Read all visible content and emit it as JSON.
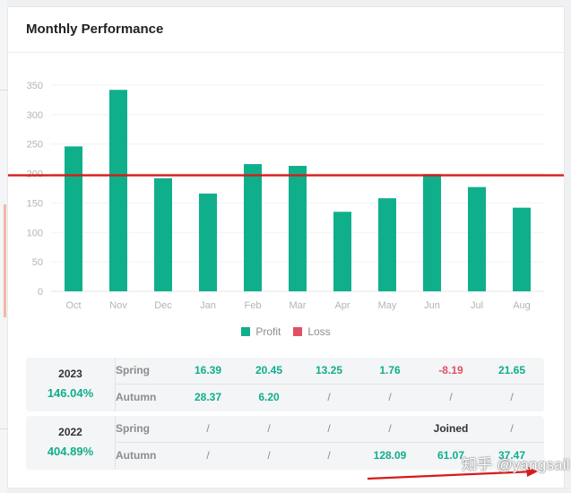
{
  "card": {
    "title": "Monthly Performance"
  },
  "chart_data": {
    "type": "bar",
    "categories": [
      "Oct",
      "Nov",
      "Dec",
      "Jan",
      "Feb",
      "Mar",
      "Apr",
      "May",
      "Jun",
      "Jul",
      "Aug"
    ],
    "series": [
      {
        "name": "Profit",
        "color": "#0faf8c",
        "values": [
          246,
          342,
          192,
          166,
          216,
          213,
          135,
          158,
          199,
          177,
          142
        ]
      }
    ],
    "yticks": [
      0,
      50,
      100,
      150,
      200,
      250,
      300,
      350
    ],
    "ylim": [
      0,
      350
    ],
    "grid": true,
    "annotation_line_y": 197,
    "annotation_color": "#d91a1a"
  },
  "legend": {
    "items": [
      {
        "label": "Profit",
        "color": "#0faf8c"
      },
      {
        "label": "Loss",
        "color": "#e05261"
      }
    ]
  },
  "years": [
    {
      "year": "2023",
      "percent": "146.04%",
      "rows": [
        {
          "season": "Spring",
          "cells": [
            {
              "text": "16.39",
              "kind": "pos"
            },
            {
              "text": "20.45",
              "kind": "pos"
            },
            {
              "text": "13.25",
              "kind": "pos"
            },
            {
              "text": "1.76",
              "kind": "pos"
            },
            {
              "text": "-8.19",
              "kind": "neg"
            },
            {
              "text": "21.65",
              "kind": "pos"
            }
          ]
        },
        {
          "season": "Autumn",
          "cells": [
            {
              "text": "28.37",
              "kind": "pos"
            },
            {
              "text": "6.20",
              "kind": "pos"
            },
            {
              "text": "/",
              "kind": "na"
            },
            {
              "text": "/",
              "kind": "na"
            },
            {
              "text": "/",
              "kind": "na"
            },
            {
              "text": "/",
              "kind": "na"
            }
          ]
        }
      ]
    },
    {
      "year": "2022",
      "percent": "404.89%",
      "rows": [
        {
          "season": "Spring",
          "cells": [
            {
              "text": "/",
              "kind": "na"
            },
            {
              "text": "/",
              "kind": "na"
            },
            {
              "text": "/",
              "kind": "na"
            },
            {
              "text": "/",
              "kind": "na"
            },
            {
              "text": "Joined",
              "kind": "dark"
            },
            {
              "text": "/",
              "kind": "na"
            }
          ]
        },
        {
          "season": "Autumn",
          "cells": [
            {
              "text": "/",
              "kind": "na"
            },
            {
              "text": "/",
              "kind": "na"
            },
            {
              "text": "/",
              "kind": "na"
            },
            {
              "text": "128.09",
              "kind": "pos"
            },
            {
              "text": "61.07",
              "kind": "pos"
            },
            {
              "text": "37.47",
              "kind": "pos"
            }
          ]
        }
      ]
    }
  ],
  "watermark": {
    "text": "知乎 @yangsail"
  }
}
